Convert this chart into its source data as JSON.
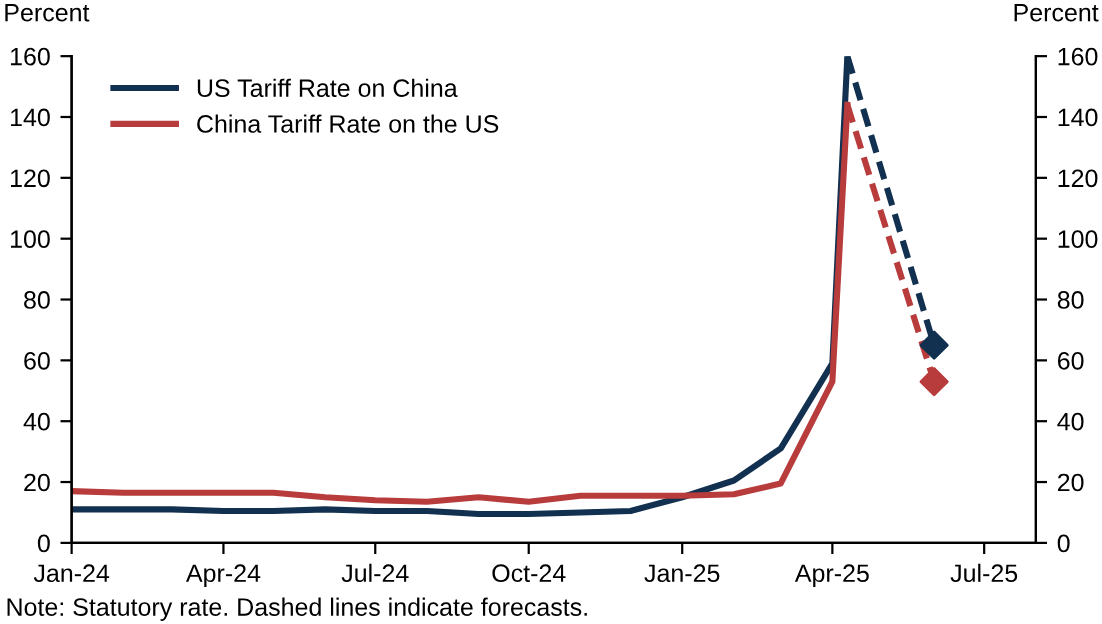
{
  "chart_data": {
    "type": "line",
    "ylabel": "Percent",
    "y2label": "Percent",
    "xlim": [
      "2024-01-01",
      "2025-08-01"
    ],
    "xticks": [
      {
        "value": "2024-01-01",
        "label": "Jan-24"
      },
      {
        "value": "2024-04-01",
        "label": "Apr-24"
      },
      {
        "value": "2024-07-01",
        "label": "Jul-24"
      },
      {
        "value": "2024-10-01",
        "label": "Oct-24"
      },
      {
        "value": "2025-01-01",
        "label": "Jan-25"
      },
      {
        "value": "2025-04-01",
        "label": "Apr-25"
      },
      {
        "value": "2025-07-01",
        "label": "Jul-25"
      }
    ],
    "ylim": [
      0,
      160
    ],
    "yticks": [
      0,
      20,
      40,
      60,
      80,
      100,
      120,
      140,
      160
    ],
    "y2lim": [
      0,
      160
    ],
    "y2ticks": [
      0,
      20,
      40,
      60,
      80,
      100,
      120,
      140,
      160
    ],
    "grid": false,
    "legend": "top left",
    "series": [
      {
        "name": "US Tariff Rate on China",
        "color": "#12304f",
        "line_style": "solid",
        "x": [
          "2024-01-01",
          "2024-02-01",
          "2024-03-01",
          "2024-04-01",
          "2024-05-01",
          "2024-06-01",
          "2024-07-01",
          "2024-08-01",
          "2024-09-01",
          "2024-10-01",
          "2024-11-01",
          "2024-12-01",
          "2025-01-01",
          "2025-02-01",
          "2025-03-01",
          "2025-04-01",
          "2025-04-10"
        ],
        "values": [
          11,
          11,
          11,
          10.5,
          10.5,
          11,
          10.5,
          10.5,
          9.5,
          9.5,
          10,
          10.5,
          15,
          20.5,
          31,
          59,
          160
        ]
      },
      {
        "name": "China Tariff Rate on the US",
        "color": "#b83c3c",
        "line_style": "solid",
        "x": [
          "2024-01-01",
          "2024-02-01",
          "2024-03-01",
          "2024-04-01",
          "2024-05-01",
          "2024-06-01",
          "2024-07-01",
          "2024-08-01",
          "2024-09-01",
          "2024-10-01",
          "2024-11-01",
          "2024-12-01",
          "2025-01-01",
          "2025-02-01",
          "2025-03-01",
          "2025-04-01",
          "2025-04-10"
        ],
        "values": [
          17,
          16.5,
          16.5,
          16.5,
          16.5,
          15,
          14,
          13.5,
          15,
          13.5,
          15.5,
          15.5,
          15.5,
          16,
          19.5,
          53,
          144
        ]
      },
      {
        "color": "#12304f",
        "line_style": "dashed",
        "x": [
          "2025-04-10",
          "2025-06-01"
        ],
        "values": [
          160,
          65
        ]
      },
      {
        "color": "#b83c3c",
        "line_style": "dashed",
        "x": [
          "2025-04-10",
          "2025-06-01"
        ],
        "values": [
          144,
          53
        ]
      },
      {
        "type": "scatter",
        "marker": "diamond",
        "color": "#12304f",
        "x": [
          "2025-06-01"
        ],
        "values": [
          65
        ]
      },
      {
        "type": "scatter",
        "marker": "diamond",
        "color": "#b83c3c",
        "x": [
          "2025-06-01"
        ],
        "values": [
          53
        ]
      }
    ],
    "annotations": [
      "Note: Statutory rate. Dashed lines indicate forecasts."
    ]
  }
}
